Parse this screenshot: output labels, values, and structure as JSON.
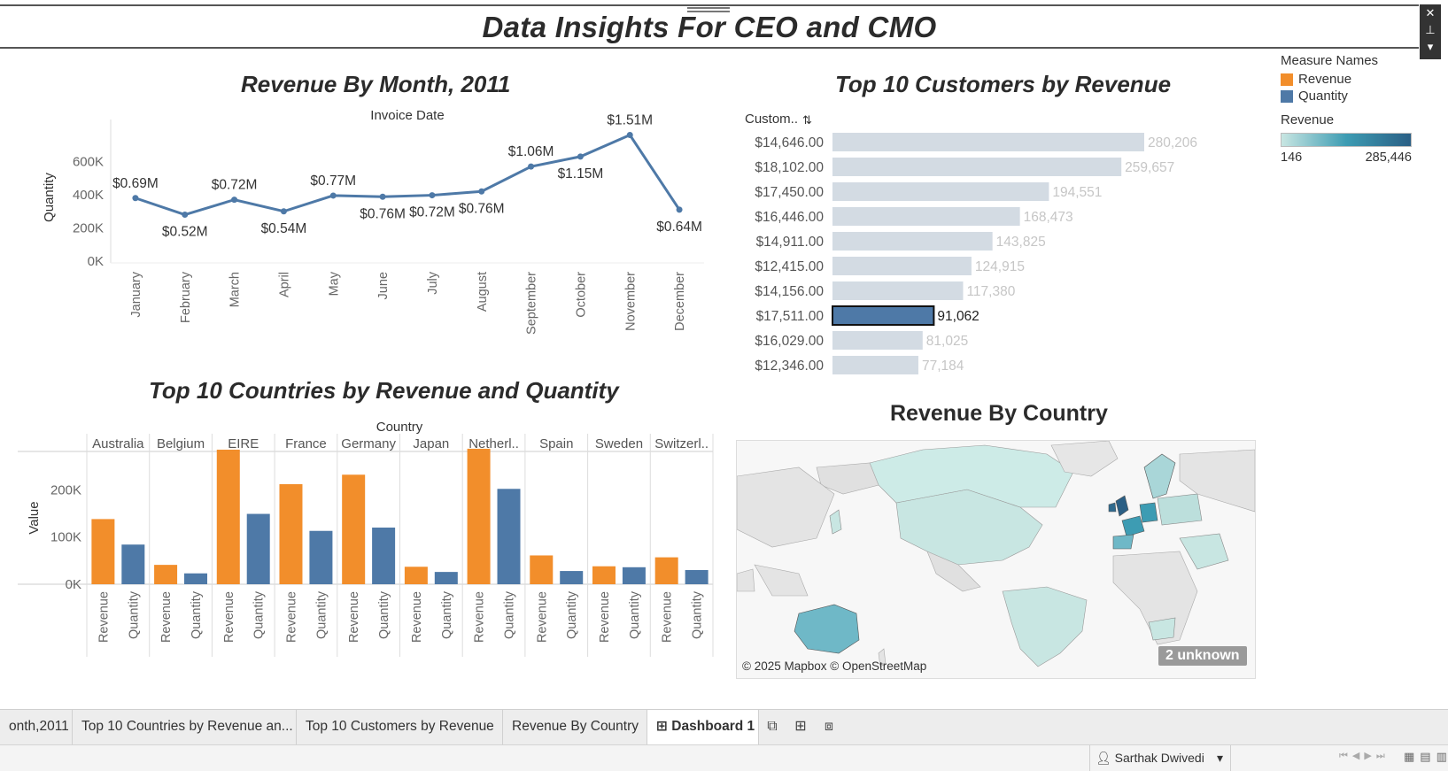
{
  "dashboard": {
    "title": "Data Insights For CEO and CMO",
    "window_controls": [
      "✕",
      "⊥",
      "▾"
    ]
  },
  "legend": {
    "measure_title": "Measure Names",
    "items": [
      {
        "label": "Revenue",
        "color": "#f28e2b"
      },
      {
        "label": "Quantity",
        "color": "#4e79a7"
      }
    ],
    "revenue_title": "Revenue",
    "revenue_min": "146",
    "revenue_max": "285,446",
    "gradient": [
      "#c8e6e2",
      "#3d9cb3",
      "#2a5f85"
    ]
  },
  "chart_data": [
    {
      "type": "line",
      "title": "Revenue By Month, 2011",
      "xlabel": "Invoice Date",
      "ylabel": "Quantity",
      "x": [
        "January",
        "February",
        "March",
        "April",
        "May",
        "June",
        "July",
        "August",
        "September",
        "October",
        "November",
        "December"
      ],
      "y": [
        380000,
        280000,
        370000,
        300000,
        395000,
        388000,
        397000,
        420000,
        570000,
        630000,
        760000,
        310000
      ],
      "labels": [
        "$0.69M",
        "$0.52M",
        "$0.72M",
        "$0.54M",
        "$0.77M",
        "$0.76M",
        "$0.72M",
        "$0.76M",
        "$1.06M",
        "$1.15M",
        "$1.51M",
        "$0.64M"
      ],
      "yticks": [
        "0K",
        "200K",
        "400K",
        "600K"
      ],
      "ylim": [
        0,
        800000
      ],
      "color": "#4e79a7"
    },
    {
      "type": "bar",
      "title": "Top 10 Customers by Revenue",
      "column_header": "Custom..",
      "categories": [
        "$14,646.00",
        "$18,102.00",
        "$17,450.00",
        "$16,446.00",
        "$14,911.00",
        "$12,415.00",
        "$14,156.00",
        "$17,511.00",
        "$16,029.00",
        "$12,346.00"
      ],
      "values": [
        280206,
        259657,
        194551,
        168473,
        143825,
        124915,
        117380,
        91062,
        81025,
        77184
      ],
      "value_labels": [
        "280,206",
        "259,657",
        "194,551",
        "168,473",
        "143,825",
        "124,915",
        "117,380",
        "91,062",
        "81,025",
        "77,184"
      ],
      "highlighted": "$17,511.00",
      "color": "#4e79a7",
      "faded_color": "#d3dbe3"
    },
    {
      "type": "bar",
      "title": "Top 10 Countries by Revenue and Quantity",
      "column_header": "Country",
      "ylabel": "Value",
      "categories": [
        "Australia",
        "Belgium",
        "EIRE",
        "France",
        "Germany",
        "Japan",
        "Netherl..",
        "Spain",
        "Sweden",
        "Switzerl.."
      ],
      "measures": [
        "Revenue",
        "Quantity"
      ],
      "series": [
        {
          "name": "Revenue",
          "color": "#f28e2b",
          "values": [
            138000,
            41000,
            285000,
            212000,
            232000,
            37000,
            287000,
            61000,
            38000,
            57000
          ]
        },
        {
          "name": "Quantity",
          "color": "#4e79a7",
          "values": [
            84000,
            23000,
            149000,
            113000,
            120000,
            26000,
            202000,
            28000,
            36000,
            30000
          ]
        }
      ],
      "yticks": [
        "0K",
        "100K",
        "200K"
      ],
      "ylim": [
        0,
        300000
      ]
    }
  ],
  "map": {
    "title": "Revenue By Country",
    "attribution": "© 2025 Mapbox © OpenStreetMap",
    "unknown_label": "2 unknown",
    "land_color": "#e4e4e4",
    "water_color": "#f7f7f7"
  },
  "tabs": [
    {
      "label": "onth,2011"
    },
    {
      "label": "Top 10 Countries by Revenue an..."
    },
    {
      "label": "Top 10 Customers by Revenue"
    },
    {
      "label": "Revenue By Country"
    },
    {
      "label": "⊞ Dashboard 1"
    }
  ],
  "status": {
    "user": "Sarthak Dwivedi"
  }
}
